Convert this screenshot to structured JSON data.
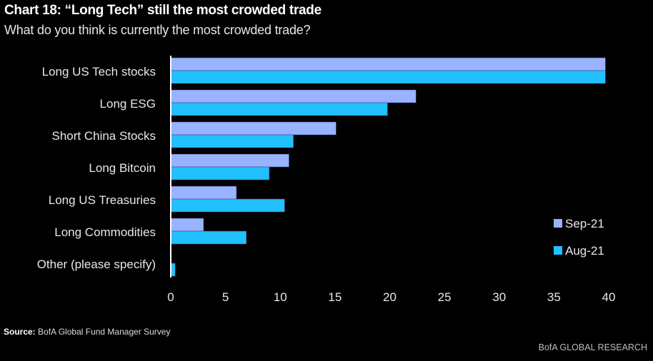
{
  "chart_data": {
    "type": "bar",
    "orientation": "horizontal",
    "title": "Chart 18: “Long Tech” still the most crowded trade",
    "subtitle": "What do you think is currently the most crowded trade?",
    "categories": [
      "Long US Tech stocks",
      "Long ESG",
      "Short China Stocks",
      "Long Bitcoin",
      "Long US Treasuries",
      "Long Commodities",
      "Other (please specify)"
    ],
    "series": [
      {
        "name": "Sep-21",
        "color": "#99b3ff",
        "values": [
          39.7,
          22.4,
          15.1,
          10.8,
          6.0,
          3.0,
          0.0
        ]
      },
      {
        "name": "Aug-21",
        "color": "#22c0ff",
        "values": [
          39.7,
          19.8,
          11.2,
          9.0,
          10.4,
          6.9,
          0.4
        ]
      }
    ],
    "xlabel": "",
    "ylabel": "",
    "xlim": [
      0,
      40
    ],
    "xticks": [
      0,
      5,
      10,
      15,
      20,
      25,
      30,
      35,
      40
    ],
    "grid": false,
    "legend_position": "bottom-right"
  },
  "source": {
    "label": "Source:",
    "text": "BofA Global Fund Manager Survey"
  },
  "brand": "BofA GLOBAL RESEARCH"
}
